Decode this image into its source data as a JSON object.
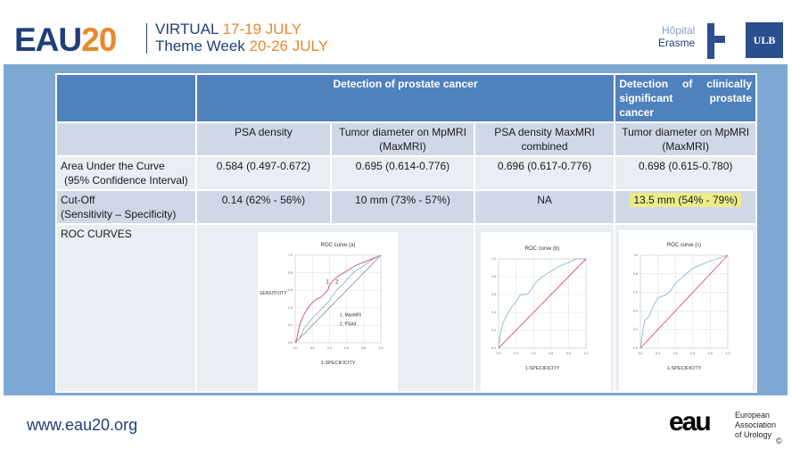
{
  "header": {
    "brand_main": "EAU",
    "brand_num": "20",
    "line1_a": "VIRTUAL ",
    "line1_b": "17-19 JULY",
    "line2_a": "Theme Week ",
    "line2_b": "20-26 JULY",
    "hospital_1": "Hôpital",
    "hospital_2": "Erasme",
    "ulb": "ULB"
  },
  "table": {
    "group1": "Detection of prostate cancer",
    "group2": "Detection of clinically significant prostate cancer",
    "columns": [
      "PSA density",
      "Tumor diameter on MpMRI (MaxMRI)",
      "PSA density MaxMRI combined",
      "Tumor diameter on MpMRI (MaxMRI)"
    ],
    "rows": [
      {
        "label": "Area Under the Curve",
        "label2": "(95% Confidence Interval)",
        "values": [
          "0.584 (0.497-0.672)",
          "0.695 (0.614-0.776)",
          "0.696 (0.617-0.776)",
          "0.698 (0.615-0.780)"
        ]
      },
      {
        "label": "Cut-Off",
        "label2": "(Sensitivity – Specificity)",
        "values": [
          "0.14 (62% - 56%)",
          "10 mm (73% - 57%)",
          "NA",
          "13.5 mm (54% - 79%)"
        ],
        "highlight_color": "#ecec8a"
      }
    ],
    "roc_label": "ROC CURVES"
  },
  "chart_data": [
    {
      "type": "line",
      "title": "ROC curve (a)",
      "xlabel": "1-SPECIFICITY",
      "ylabel": "SENSITIVITY",
      "xlim": [
        0,
        1
      ],
      "ylim": [
        0,
        1
      ],
      "grid": true,
      "annotations": [
        "1",
        "2",
        "1. MaxMRI",
        "2. PSAd"
      ],
      "series": [
        {
          "color": "#c8506a",
          "x": [
            0,
            0.02,
            0.05,
            0.1,
            0.15,
            0.2,
            0.25,
            0.3,
            0.38,
            0.4,
            0.45,
            0.5,
            0.6,
            0.7,
            0.8,
            0.9,
            1
          ],
          "y": [
            0,
            0.05,
            0.2,
            0.32,
            0.4,
            0.46,
            0.5,
            0.52,
            0.6,
            0.66,
            0.72,
            0.76,
            0.82,
            0.88,
            0.92,
            0.96,
            1
          ]
        },
        {
          "color": "#8fb4d8",
          "x": [
            0,
            0.05,
            0.1,
            0.15,
            0.2,
            0.3,
            0.4,
            0.45,
            0.5,
            0.55,
            0.6,
            0.7,
            0.8,
            0.9,
            1
          ],
          "y": [
            0,
            0.05,
            0.16,
            0.22,
            0.28,
            0.38,
            0.48,
            0.56,
            0.62,
            0.66,
            0.72,
            0.82,
            0.88,
            0.95,
            1
          ]
        },
        {
          "color": "#999999",
          "x": [
            0,
            1
          ],
          "y": [
            0,
            1
          ]
        }
      ]
    },
    {
      "type": "line",
      "title": "ROC curve (b)",
      "xlabel": "1-SPECIFICITY",
      "xlim": [
        0,
        1
      ],
      "ylim": [
        0,
        1
      ],
      "grid": true,
      "series": [
        {
          "color": "#8fb4d8",
          "x": [
            0,
            0.02,
            0.05,
            0.1,
            0.15,
            0.2,
            0.25,
            0.3,
            0.35,
            0.4,
            0.45,
            0.5,
            0.55,
            0.6,
            0.7,
            0.8,
            0.9,
            1
          ],
          "y": [
            0,
            0.15,
            0.28,
            0.38,
            0.46,
            0.52,
            0.6,
            0.6,
            0.62,
            0.7,
            0.76,
            0.8,
            0.83,
            0.86,
            0.92,
            0.96,
            1,
            1
          ]
        },
        {
          "color": "#d9506a",
          "x": [
            0,
            1
          ],
          "y": [
            0,
            1
          ]
        }
      ]
    },
    {
      "type": "line",
      "title": "ROC curve (c)",
      "xlabel": "1-SPECIFICITY",
      "xlim": [
        0,
        1
      ],
      "ylim": [
        0,
        1
      ],
      "grid": true,
      "series": [
        {
          "color": "#8fb4d8",
          "x": [
            0,
            0.03,
            0.05,
            0.1,
            0.15,
            0.2,
            0.3,
            0.35,
            0.4,
            0.5,
            0.6,
            0.7,
            0.8,
            0.9,
            1
          ],
          "y": [
            0,
            0.2,
            0.3,
            0.34,
            0.46,
            0.54,
            0.58,
            0.62,
            0.7,
            0.78,
            0.86,
            0.9,
            0.94,
            0.97,
            1
          ]
        },
        {
          "color": "#d9506a",
          "x": [
            0,
            1
          ],
          "y": [
            0,
            1
          ]
        }
      ]
    }
  ],
  "footer": {
    "url": "www.eau20.org",
    "logo": "eau",
    "org_1": "European",
    "org_2": "Association",
    "org_3": "of Urology",
    "copyright": "©"
  }
}
